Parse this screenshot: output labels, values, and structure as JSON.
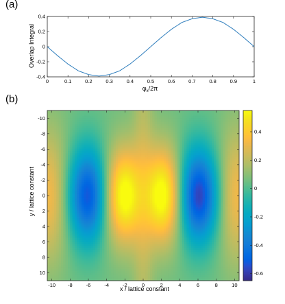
{
  "panel_labels": {
    "a": "(a)",
    "b": "(b)"
  },
  "chart_data": [
    {
      "type": "line",
      "panel": "(a)",
      "xlabel": "φx/2π",
      "xlabel_main": "φ",
      "xlabel_sub": "x",
      "xlabel_rest": "/2π",
      "ylabel": "Overlap Integral",
      "xlim": [
        0,
        1
      ],
      "ylim": [
        -0.4,
        0.4
      ],
      "xticks": [
        0,
        0.1,
        0.2,
        0.3,
        0.4,
        0.5,
        0.6,
        0.7,
        0.8,
        0.9,
        1
      ],
      "xtick_labels": [
        "0",
        "0.1",
        "0.2",
        "0.3",
        "0.4",
        "0.5",
        "0.6",
        "0.7",
        "0.8",
        "0.9",
        "1"
      ],
      "yticks": [
        0.4,
        0.2,
        0,
        -0.2,
        -0.4
      ],
      "ytick_labels": [
        "0.4",
        "0.2",
        "0",
        "-0.2",
        "-0.4"
      ],
      "series": [
        {
          "color": "#2f7ebd",
          "x": [
            0,
            0.05,
            0.1,
            0.15,
            0.2,
            0.25,
            0.3,
            0.35,
            0.4,
            0.45,
            0.5,
            0.55,
            0.6,
            0.65,
            0.7,
            0.75,
            0.8,
            0.85,
            0.9,
            0.95,
            1
          ],
          "y": [
            0,
            -0.12,
            -0.23,
            -0.32,
            -0.37,
            -0.39,
            -0.37,
            -0.32,
            -0.23,
            -0.12,
            0,
            0.12,
            0.23,
            0.32,
            0.37,
            0.39,
            0.37,
            0.32,
            0.23,
            0.12,
            0
          ]
        }
      ]
    },
    {
      "type": "heatmap",
      "panel": "(b)",
      "xlabel": "x / lattice constant",
      "ylabel": "y / lattice constant",
      "xlim": [
        -10.5,
        10.5
      ],
      "ylim": [
        -11,
        11
      ],
      "y_reversed": true,
      "xticks": [
        -10,
        -8,
        -6,
        -4,
        -2,
        0,
        2,
        4,
        6,
        8,
        10
      ],
      "xtick_labels": [
        "-10",
        "-8",
        "-6",
        "-4",
        "-2",
        "0",
        "2",
        "4",
        "6",
        "8",
        "10"
      ],
      "yticks": [
        -10,
        -8,
        -6,
        -4,
        -2,
        0,
        2,
        4,
        6,
        8,
        10
      ],
      "ytick_labels": [
        "-10",
        "-8",
        "-6",
        "-4",
        "-2",
        "0",
        "2",
        "4",
        "6",
        "8",
        "10"
      ],
      "colorbar": {
        "range": [
          -0.65,
          0.55
        ],
        "ticks": [
          0.4,
          0.2,
          0,
          -0.2,
          -0.4,
          -0.6
        ],
        "tick_labels": [
          "0.4",
          "0.2",
          "0",
          "-0.2",
          "-0.4",
          "-0.6"
        ],
        "colormap": "parula"
      },
      "features": [
        {
          "x": -6,
          "y": 0,
          "value": -0.6
        },
        {
          "x": -2.2,
          "y": 0,
          "value": 0.55
        },
        {
          "x": 2.2,
          "y": 0,
          "value": 0.55
        },
        {
          "x": 6,
          "y": 0,
          "value": -0.65
        }
      ]
    }
  ]
}
